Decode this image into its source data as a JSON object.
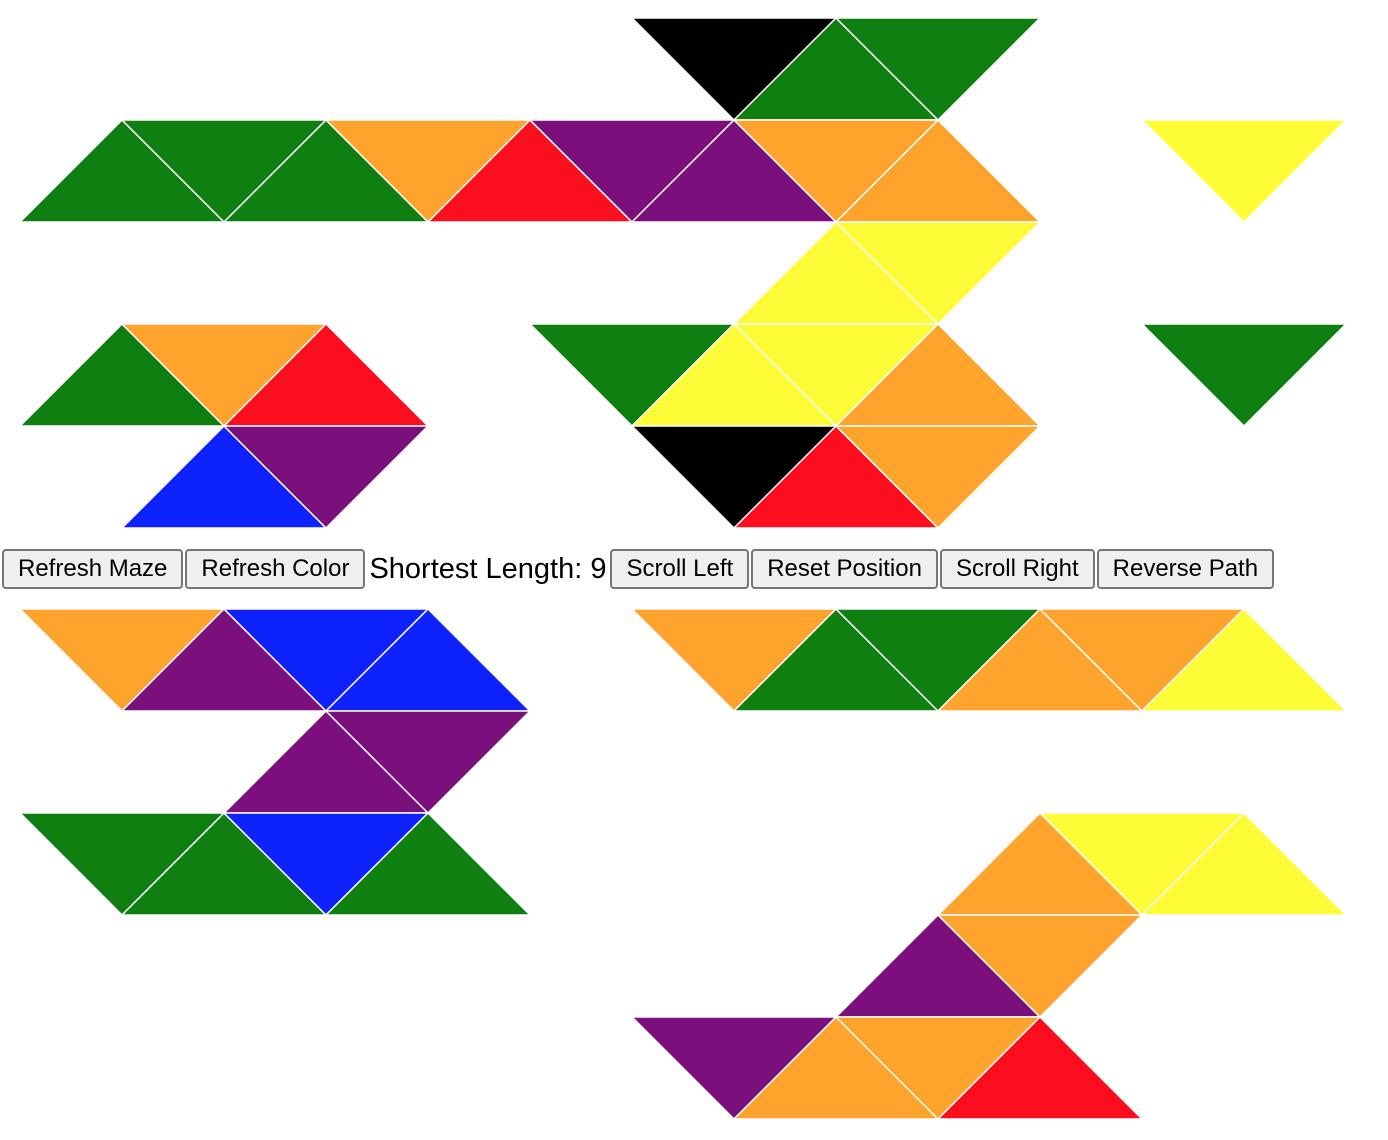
{
  "colors": {
    "G": "#0f7f12",
    "O": "#fea42c",
    "R": "#fd0e1e",
    "P": "#7b0f7b",
    "Y": "#fdfc36",
    "B": "#0d22fd",
    "K": "#000000"
  },
  "controls": {
    "refresh_maze": "Refresh Maze",
    "refresh_color": "Refresh Color",
    "shortest_label": "Shortest Length: ",
    "shortest_value": "9",
    "scroll_left": "Scroll Left",
    "reset_position": "Reset Position",
    "scroll_right": "Scroll Right",
    "reverse_path": "Reverse Path"
  },
  "maze": {
    "top_rows": [
      [
        "",
        "",
        "",
        "",
        "",
        "",
        "K",
        "G",
        "G",
        "",
        "",
        "",
        "",
        ""
      ],
      [
        "G",
        "G",
        "G",
        "O",
        "R",
        "P",
        "P",
        "O",
        "O",
        "",
        "",
        "Y",
        "",
        ""
      ],
      [
        "",
        "",
        "",
        "",
        "",
        "",
        "",
        "Y",
        "Y",
        "",
        "",
        "",
        "",
        ""
      ],
      [
        "G",
        "O",
        "R",
        "",
        "",
        "G",
        "Y",
        "Y",
        "O",
        "",
        "",
        "G",
        "",
        ""
      ],
      [
        "",
        "B",
        "P",
        "",
        "",
        "",
        "K",
        "R",
        "O",
        "",
        "",
        "",
        "",
        ""
      ]
    ],
    "bottom_rows": [
      [
        "O",
        "P",
        "B",
        "B",
        "",
        "",
        "O",
        "G",
        "G",
        "O",
        "O",
        "Y",
        "",
        ""
      ],
      [
        "",
        "",
        "P",
        "P",
        "",
        "",
        "",
        "",
        "",
        "",
        "",
        "",
        "",
        ""
      ],
      [
        "G",
        "G",
        "B",
        "G",
        "",
        "",
        "",
        "",
        "",
        "O",
        "Y",
        "Y",
        "",
        ""
      ],
      [
        "",
        "",
        "",
        "",
        "",
        "",
        "",
        "",
        "P",
        "O",
        "",
        "",
        "",
        ""
      ],
      [
        "",
        "",
        "",
        "",
        "",
        "",
        "P",
        "O",
        "O",
        "R",
        "",
        "",
        "",
        ""
      ]
    ]
  }
}
